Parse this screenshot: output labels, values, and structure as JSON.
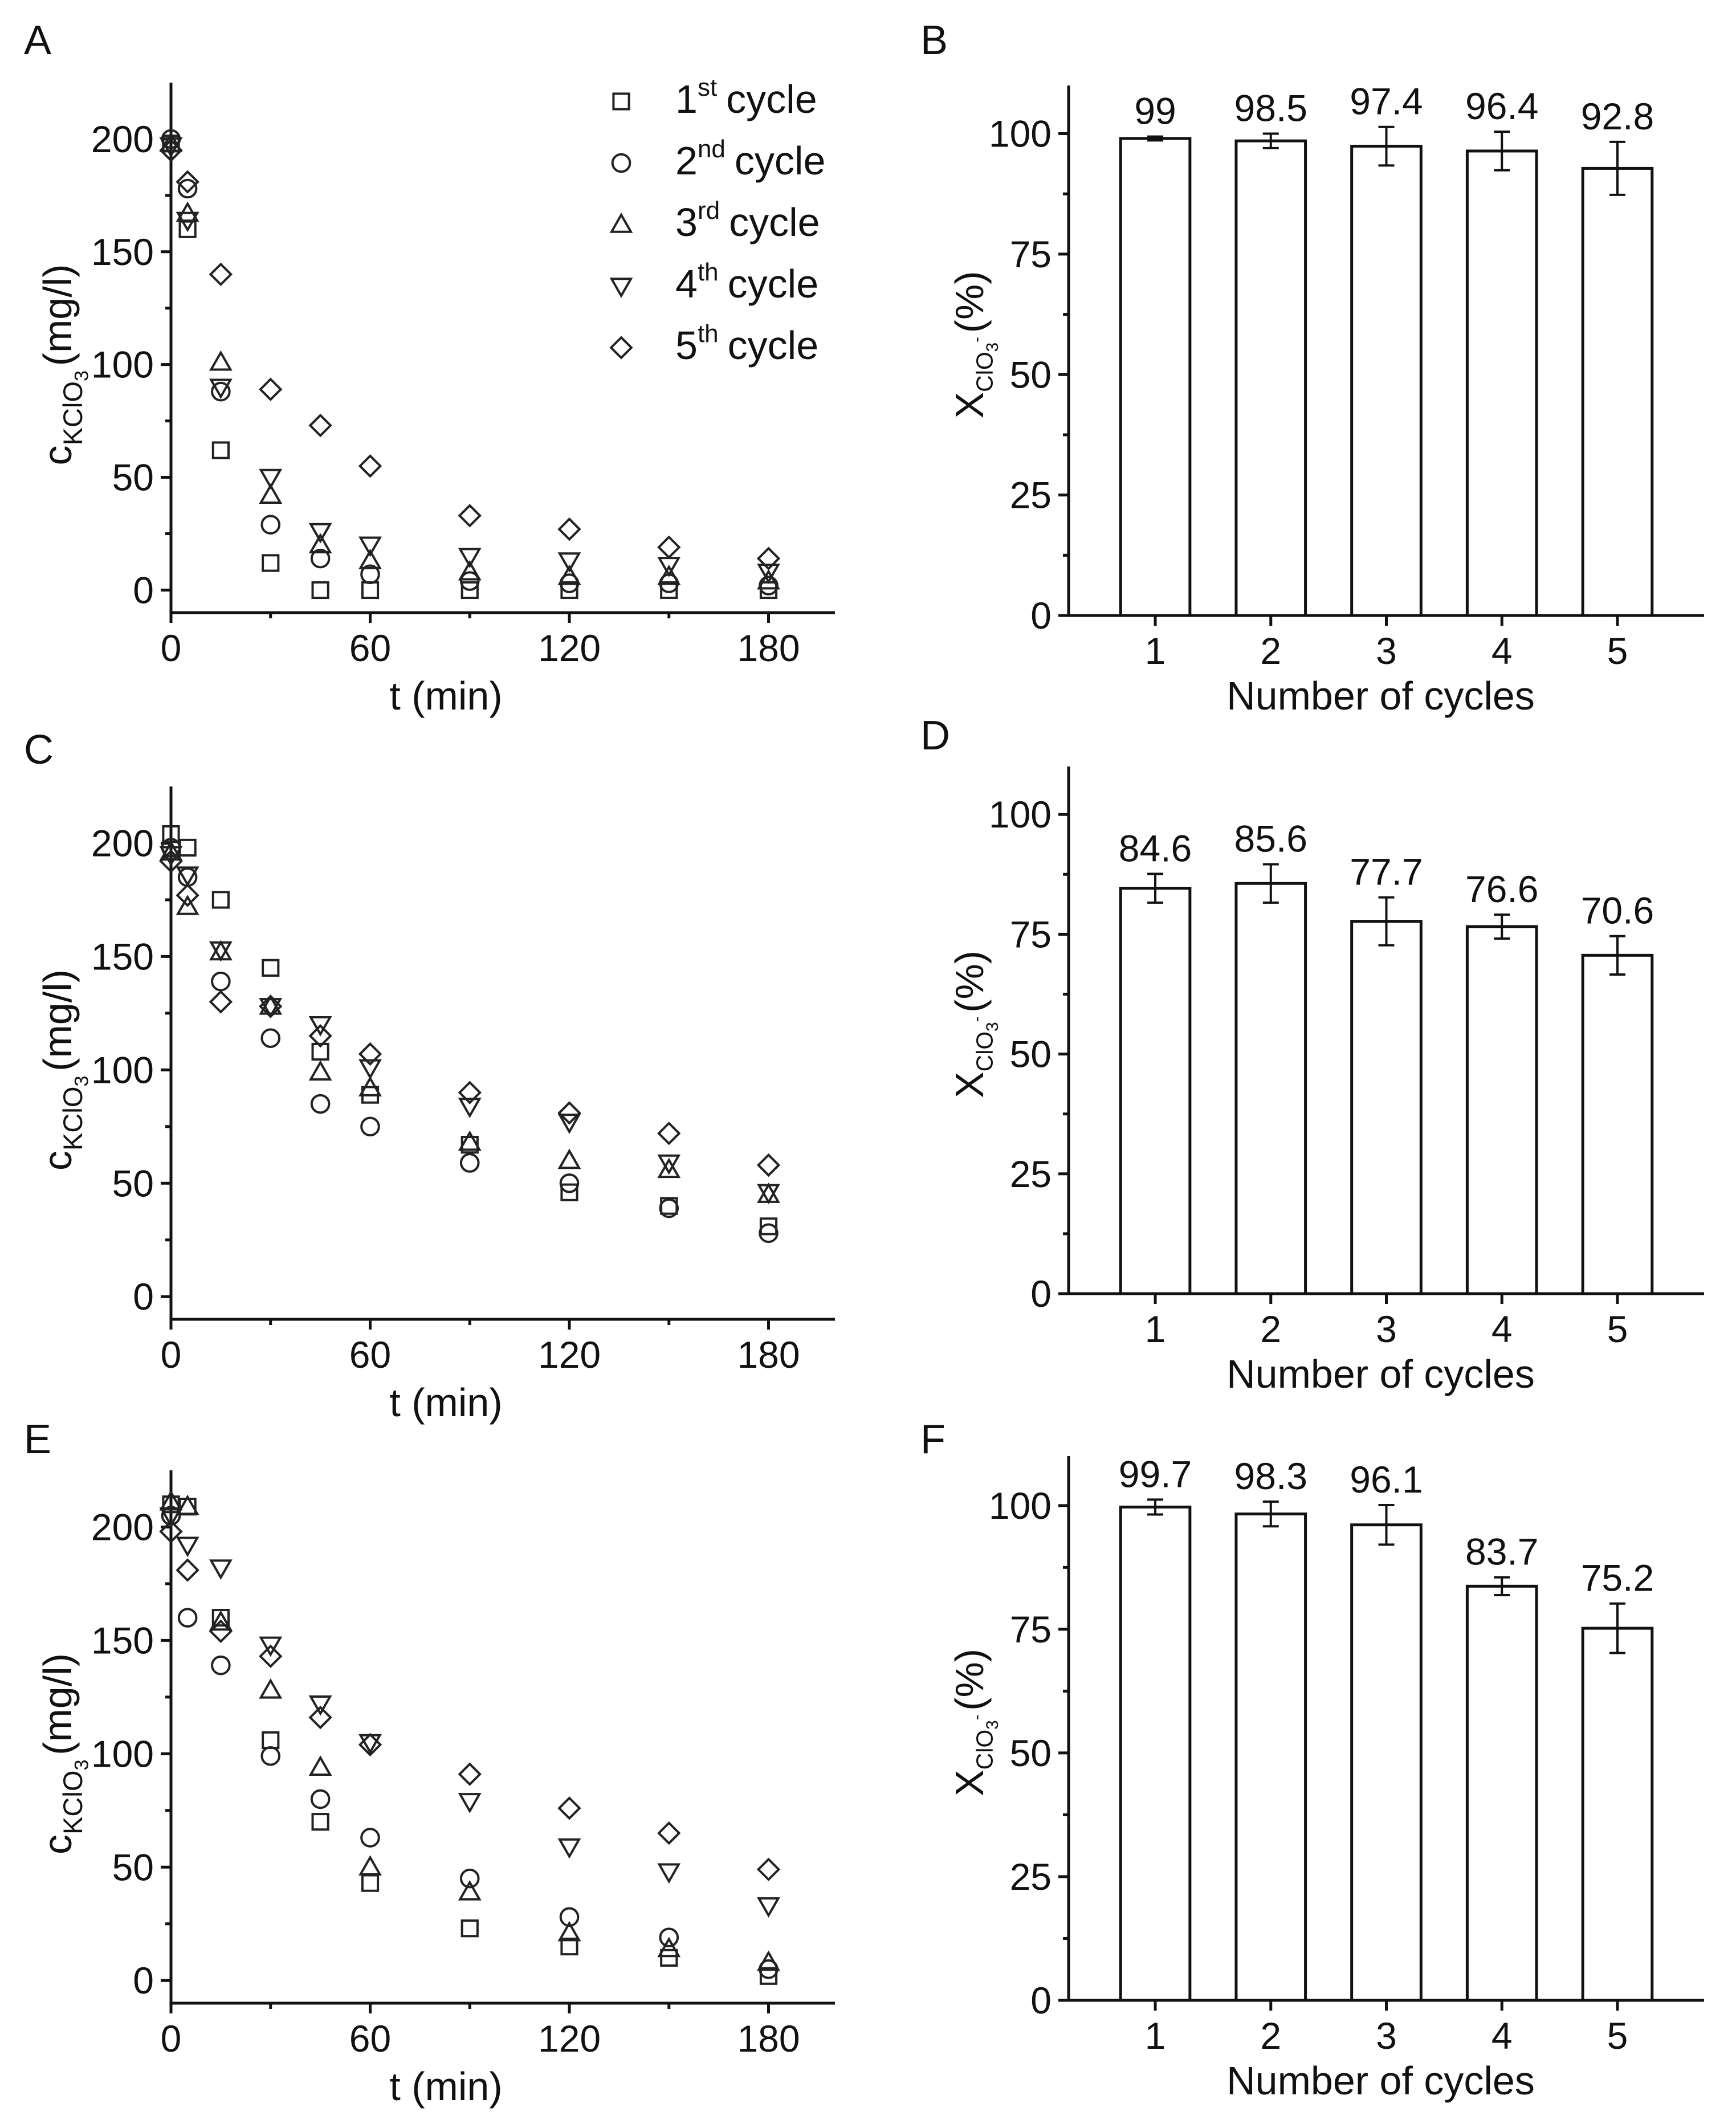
{
  "chart_data": [
    {
      "panel": "A",
      "type": "scatter",
      "xlabel": "t (min)",
      "ylabel": "c_KClO3 (mg/l)",
      "ylabel_parts": {
        "base": "c",
        "sub": "KClO",
        "subsub": "3",
        "unit": "(mg/l)"
      },
      "xlim": [
        0,
        200
      ],
      "ylim": [
        -10,
        225
      ],
      "xticks": [
        0,
        60,
        120,
        180
      ],
      "yticks": [
        0,
        50,
        100,
        150,
        200
      ],
      "legend": {
        "position": "top-right",
        "entries": [
          {
            "marker": "square",
            "ord": "1",
            "sup": "st",
            "text": "cycle"
          },
          {
            "marker": "circle",
            "ord": "2",
            "sup": "nd",
            "text": "cycle"
          },
          {
            "marker": "triangle-up",
            "ord": "3",
            "sup": "rd",
            "text": "cycle"
          },
          {
            "marker": "triangle-down",
            "ord": "4",
            "sup": "th",
            "text": "cycle"
          },
          {
            "marker": "diamond",
            "ord": "5",
            "sup": "th",
            "text": "cycle"
          }
        ]
      },
      "x": [
        0,
        5,
        15,
        30,
        45,
        60,
        90,
        120,
        150,
        180
      ],
      "series": [
        {
          "name": "1st cycle",
          "marker": "square",
          "values": [
            198,
            160,
            62,
            12,
            0,
            0,
            0,
            0,
            0,
            0
          ]
        },
        {
          "name": "2nd cycle",
          "marker": "circle",
          "values": [
            200,
            178,
            88,
            29,
            14,
            7,
            4,
            3,
            3,
            2
          ]
        },
        {
          "name": "3rd cycle",
          "marker": "triangle-up",
          "values": [
            198,
            167,
            101,
            42,
            20,
            13,
            8,
            6,
            6,
            4
          ]
        },
        {
          "name": "4th cycle",
          "marker": "triangle-down",
          "values": [
            197,
            164,
            90,
            50,
            26,
            20,
            15,
            13,
            11,
            8
          ]
        },
        {
          "name": "5th cycle",
          "marker": "diamond",
          "values": [
            195,
            181,
            140,
            89,
            73,
            55,
            33,
            27,
            19,
            14
          ]
        }
      ]
    },
    {
      "panel": "B",
      "type": "bar",
      "xlabel": "Number of cycles",
      "ylabel": "X_ClO3- (%)",
      "ylabel_parts": {
        "base": "X",
        "sub": "ClO",
        "subsub": "3",
        "sup": "-",
        "unit": "(%)"
      },
      "categories": [
        "1",
        "2",
        "3",
        "4",
        "5"
      ],
      "values": [
        99,
        98.5,
        97.4,
        96.4,
        92.8
      ],
      "value_labels": [
        "99",
        "98.5",
        "97.4",
        "96.4",
        "92.8"
      ],
      "errors": [
        0.4,
        1.5,
        4,
        4,
        5.5
      ],
      "ylim": [
        0,
        110
      ],
      "yticks": [
        0,
        25,
        50,
        75,
        100
      ]
    },
    {
      "panel": "C",
      "type": "scatter",
      "xlabel": "t (min)",
      "ylabel": "c_KClO3 (mg/l)",
      "ylabel_parts": {
        "base": "c",
        "sub": "KClO",
        "subsub": "3",
        "unit": "(mg/l)"
      },
      "xlim": [
        0,
        200
      ],
      "ylim": [
        -10,
        225
      ],
      "xticks": [
        0,
        60,
        120,
        180
      ],
      "yticks": [
        0,
        50,
        100,
        150,
        200
      ],
      "x": [
        0,
        5,
        15,
        30,
        45,
        60,
        90,
        120,
        150,
        180
      ],
      "series": [
        {
          "name": "1st cycle",
          "marker": "square",
          "values": [
            204,
            198,
            175,
            145,
            108,
            89,
            67,
            46,
            40,
            31
          ]
        },
        {
          "name": "2nd cycle",
          "marker": "circle",
          "values": [
            198,
            185,
            139,
            114,
            85,
            75,
            59,
            50,
            39,
            28
          ]
        },
        {
          "name": "3rd cycle",
          "marker": "triangle-up",
          "values": [
            196,
            172,
            152,
            128,
            99,
            92,
            68,
            60,
            56,
            45
          ]
        },
        {
          "name": "4th cycle",
          "marker": "triangle-down",
          "values": [
            195,
            186,
            153,
            128,
            120,
            101,
            84,
            77,
            59,
            46
          ]
        },
        {
          "name": "5th cycle",
          "marker": "diamond",
          "values": [
            192,
            177,
            130,
            128,
            115,
            107,
            90,
            81,
            72,
            58
          ]
        }
      ]
    },
    {
      "panel": "D",
      "type": "bar",
      "xlabel": "Number of cycles",
      "ylabel": "X_ClO3- (%)",
      "ylabel_parts": {
        "base": "X",
        "sub": "ClO",
        "subsub": "3",
        "sup": "-",
        "unit": "(%)"
      },
      "categories": [
        "1",
        "2",
        "3",
        "4",
        "5"
      ],
      "values": [
        84.6,
        85.6,
        77.7,
        76.6,
        70.6
      ],
      "value_labels": [
        "84.6",
        "85.6",
        "77.7",
        "76.6",
        "70.6"
      ],
      "errors": [
        3,
        4,
        5,
        2.5,
        4
      ],
      "ylim": [
        0,
        110
      ],
      "yticks": [
        0,
        25,
        50,
        75,
        100
      ]
    },
    {
      "panel": "E",
      "type": "scatter",
      "xlabel": "t (min)",
      "ylabel": "c_KClO3 (mg/l)",
      "ylabel_parts": {
        "base": "c",
        "sub": "KClO",
        "subsub": "3",
        "unit": "(mg/l)"
      },
      "xlim": [
        0,
        200
      ],
      "ylim": [
        -10,
        225
      ],
      "xticks": [
        0,
        60,
        120,
        180
      ],
      "yticks": [
        0,
        50,
        100,
        150,
        200
      ],
      "x": [
        0,
        5,
        15,
        30,
        45,
        60,
        90,
        120,
        150,
        180
      ],
      "series": [
        {
          "name": "1st cycle",
          "marker": "square",
          "values": [
            210,
            209,
            160,
            106,
            70,
            43,
            23,
            15,
            10,
            2
          ]
        },
        {
          "name": "2nd cycle",
          "marker": "circle",
          "values": [
            205,
            160,
            139,
            99,
            80,
            63,
            45,
            28,
            19,
            5
          ]
        },
        {
          "name": "3rd cycle",
          "marker": "triangle-up",
          "values": [
            211,
            209,
            158,
            128,
            94,
            50,
            39,
            21,
            14,
            8
          ]
        },
        {
          "name": "4th cycle",
          "marker": "triangle-down",
          "values": [
            205,
            192,
            182,
            148,
            122,
            105,
            79,
            59,
            48,
            33
          ]
        },
        {
          "name": "5th cycle",
          "marker": "diamond",
          "values": [
            198,
            181,
            154,
            143,
            116,
            104,
            91,
            76,
            65,
            49
          ]
        }
      ]
    },
    {
      "panel": "F",
      "type": "bar",
      "xlabel": "Number of cycles",
      "ylabel": "X_ClO3- (%)",
      "ylabel_parts": {
        "base": "X",
        "sub": "ClO",
        "subsub": "3",
        "sup": "-",
        "unit": "(%)"
      },
      "categories": [
        "1",
        "2",
        "3",
        "4",
        "5"
      ],
      "values": [
        99.7,
        98.3,
        96.1,
        83.7,
        75.2
      ],
      "value_labels": [
        "99.7",
        "98.3",
        "96.1",
        "83.7",
        "75.2"
      ],
      "errors": [
        1.5,
        2.5,
        4,
        1.8,
        5
      ],
      "ylim": [
        0,
        110
      ],
      "yticks": [
        0,
        25,
        50,
        75,
        100
      ]
    }
  ]
}
